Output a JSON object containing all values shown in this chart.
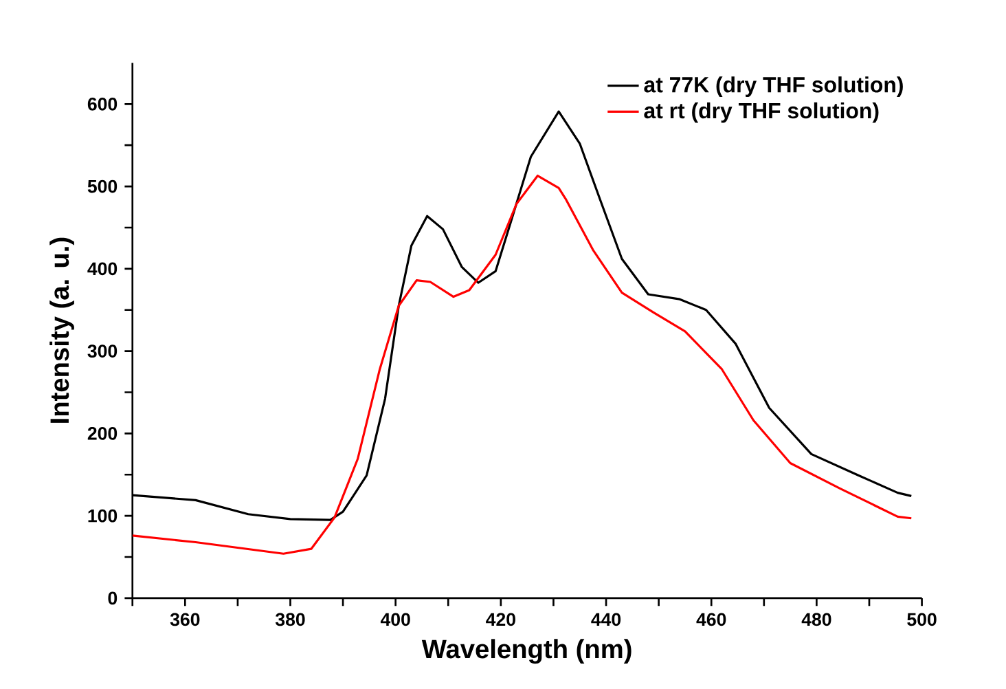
{
  "chart_data": {
    "type": "line",
    "xlabel": "Wavelength (nm)",
    "ylabel": "Intensity (a. u.)",
    "xlim": [
      350,
      500
    ],
    "ylim": [
      0,
      650
    ],
    "xticks": [
      {
        "value": 350,
        "label": null
      },
      360,
      {
        "value": 370,
        "label": null
      },
      380,
      {
        "value": 390,
        "label": null
      },
      400,
      {
        "value": 410,
        "label": null
      },
      420,
      {
        "value": 430,
        "label": null
      },
      440,
      {
        "value": 450,
        "label": null
      },
      460,
      {
        "value": 470,
        "label": null
      },
      480,
      {
        "value": 490,
        "label": null
      },
      500
    ],
    "yticks": [
      0,
      {
        "value": 50,
        "label": null
      },
      100,
      {
        "value": 150,
        "label": null
      },
      200,
      {
        "value": 250,
        "label": null
      },
      300,
      {
        "value": 350,
        "label": null
      },
      400,
      {
        "value": 450,
        "label": null
      },
      500,
      {
        "value": 550,
        "label": null
      },
      600
    ],
    "grid": false,
    "legend": "top right",
    "marker": "none",
    "line_style": "solid",
    "series": [
      {
        "name": "at 77K (dry THF solution)",
        "color": "#000000",
        "x": [
          350,
          362,
          372,
          380,
          387.6,
          390,
          394.5,
          398,
          400.6,
          403,
          406,
          409,
          412.6,
          415.7,
          419,
          422,
          425.7,
          431,
          435,
          438.8,
          443,
          448,
          454,
          459,
          464.6,
          471,
          479,
          488,
          495.4,
          498
        ],
        "values": [
          125,
          119,
          102,
          96,
          95,
          105,
          149,
          242,
          355,
          428,
          464,
          448,
          402,
          383,
          397,
          459,
          536,
          591,
          552,
          485,
          412,
          369,
          363,
          350,
          309,
          231,
          175,
          149,
          128,
          124
        ]
      },
      {
        "name": "at rt (dry THF solution)",
        "color": "#ff0000",
        "x": [
          350,
          362,
          378.7,
          384,
          388.4,
          392.8,
          397,
          400.6,
          404,
          406.6,
          411,
          414,
          419,
          423,
          427,
          431,
          432.3,
          437.5,
          443,
          449,
          455,
          462,
          468,
          475,
          484.5,
          495.4,
          498
        ],
        "values": [
          76,
          68,
          54,
          60,
          98,
          169,
          278,
          355,
          386,
          384,
          366,
          374,
          417,
          479,
          513,
          498,
          485,
          423,
          371,
          347,
          324,
          278,
          216,
          164,
          133,
          99,
          97
        ]
      }
    ]
  }
}
